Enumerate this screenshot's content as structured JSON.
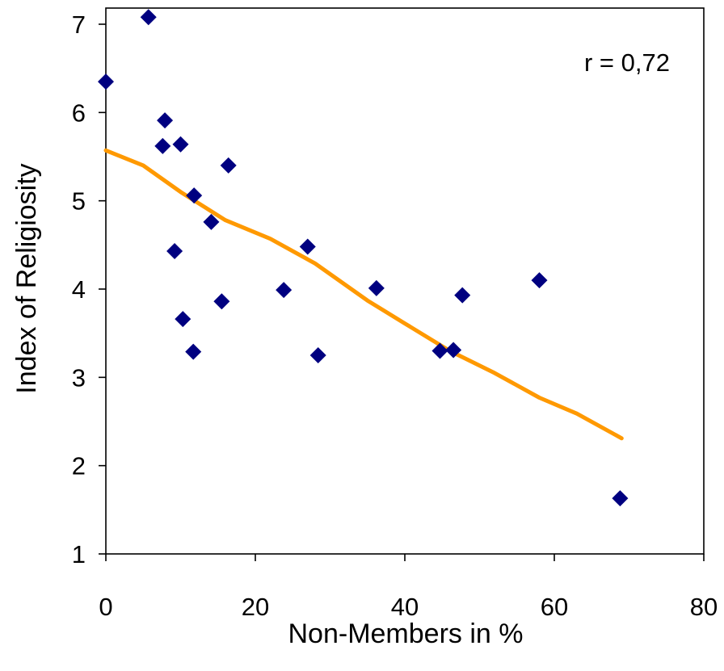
{
  "chart_data": {
    "type": "scatter",
    "xlabel": "Non-Members in %",
    "ylabel": "Index of Religiosity",
    "xlim": [
      0,
      80
    ],
    "ylim": [
      1,
      7.2
    ],
    "xticks": [
      0,
      20,
      40,
      60,
      80
    ],
    "yticks": [
      1,
      2,
      3,
      4,
      5,
      6,
      7
    ],
    "grid": false,
    "annotation": "r = 0,72",
    "colors": {
      "points": "#000080",
      "trend": "#FF9900",
      "axis": "#000000"
    },
    "points": [
      {
        "x": 0.0,
        "y": 6.35
      },
      {
        "x": 5.7,
        "y": 7.08
      },
      {
        "x": 7.6,
        "y": 5.62
      },
      {
        "x": 7.9,
        "y": 5.91
      },
      {
        "x": 9.2,
        "y": 4.43
      },
      {
        "x": 10.0,
        "y": 5.64
      },
      {
        "x": 10.3,
        "y": 3.66
      },
      {
        "x": 11.7,
        "y": 3.29
      },
      {
        "x": 11.8,
        "y": 5.06
      },
      {
        "x": 14.1,
        "y": 4.76
      },
      {
        "x": 15.5,
        "y": 3.86
      },
      {
        "x": 16.4,
        "y": 5.4
      },
      {
        "x": 23.8,
        "y": 3.99
      },
      {
        "x": 27.0,
        "y": 4.48
      },
      {
        "x": 28.4,
        "y": 3.25
      },
      {
        "x": 36.2,
        "y": 4.01
      },
      {
        "x": 44.7,
        "y": 3.3
      },
      {
        "x": 46.5,
        "y": 3.31
      },
      {
        "x": 47.7,
        "y": 3.93
      },
      {
        "x": 58.0,
        "y": 4.1
      },
      {
        "x": 68.8,
        "y": 1.63
      }
    ],
    "trend_line": {
      "x": [
        0,
        5,
        10,
        16,
        22,
        28,
        35,
        40,
        46,
        52,
        58,
        63,
        69
      ],
      "y": [
        5.57,
        5.4,
        5.1,
        4.78,
        4.57,
        4.29,
        3.87,
        3.61,
        3.3,
        3.05,
        2.77,
        2.59,
        2.31
      ]
    }
  }
}
